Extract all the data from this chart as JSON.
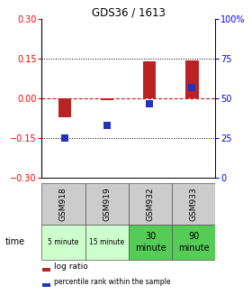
{
  "title": "GDS36 / 1613",
  "samples": [
    "GSM918",
    "GSM919",
    "GSM932",
    "GSM933"
  ],
  "time_labels": [
    "5 minute",
    "15 minute",
    "30\nminute",
    "90\nminute"
  ],
  "time_colors": [
    "#ccffcc",
    "#ccffcc",
    "#55cc55",
    "#55cc55"
  ],
  "log_ratios": [
    -0.07,
    -0.005,
    0.14,
    0.145
  ],
  "percentile_ranks_pct": [
    25,
    33,
    47,
    57
  ],
  "ylim_left": [
    -0.3,
    0.3
  ],
  "ylim_right": [
    0,
    100
  ],
  "yticks_left": [
    -0.3,
    -0.15,
    0,
    0.15,
    0.3
  ],
  "yticks_right": [
    0,
    25,
    50,
    75,
    100
  ],
  "bar_color": "#bb2222",
  "dot_color": "#2233bb",
  "bar_width": 0.3,
  "dot_size": 28,
  "header_bg": "#cccccc",
  "bg_color": "#ffffff"
}
